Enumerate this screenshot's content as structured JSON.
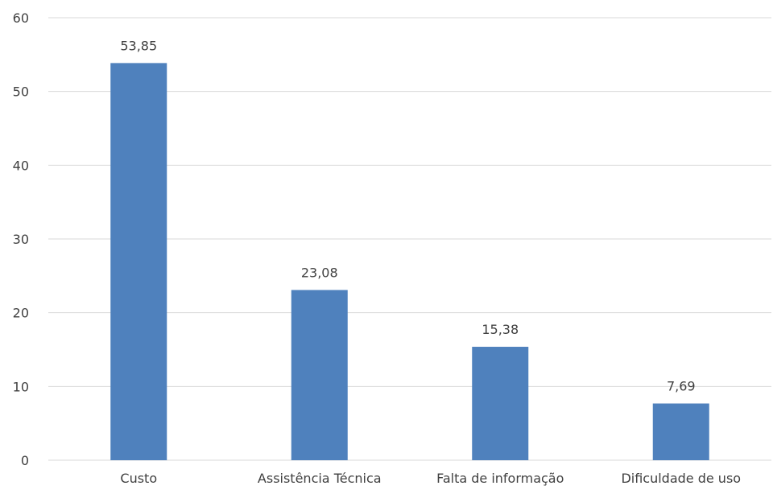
{
  "chart_data": {
    "type": "bar",
    "categories": [
      "Custo",
      "Assistência Técnica",
      "Falta de informação",
      "Dificuldade de uso"
    ],
    "values": [
      53.85,
      23.08,
      15.38,
      7.69
    ],
    "data_labels": [
      "53,85",
      "23,08",
      "15,38",
      "7,69"
    ],
    "ylim": [
      0,
      60
    ],
    "yticks": [
      0,
      10,
      20,
      30,
      40,
      50,
      60
    ],
    "grid": true,
    "bar_color": "#4f81bd",
    "gridline_color": "#d9d9d9",
    "text_color": "#404040"
  }
}
